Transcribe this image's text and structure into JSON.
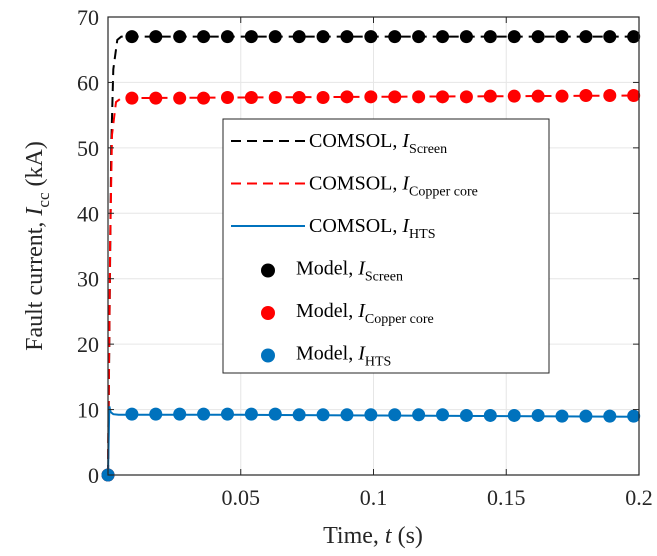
{
  "chart_data": {
    "type": "line",
    "xlabel": {
      "prefix": "Time, ",
      "var": "t",
      "suffix": " (s)"
    },
    "ylabel": {
      "prefix": "Fault current, ",
      "var": "I",
      "sub": "cc",
      "suffix": "  (kA)"
    },
    "xlim": [
      0,
      0.2
    ],
    "ylim": [
      0,
      70
    ],
    "x_ticks": [
      0.05,
      0.1,
      0.15,
      0.2
    ],
    "x_tick_labels": [
      "0.05",
      "0.1",
      "0.15",
      "0.2"
    ],
    "y_ticks": [
      0,
      10,
      20,
      30,
      40,
      50,
      60,
      70
    ],
    "y_tick_labels": [
      "0",
      "10",
      "20",
      "30",
      "40",
      "50",
      "60",
      "70"
    ],
    "grid": true,
    "legend_position": "center",
    "series": [
      {
        "name": "COMSOL, I_Screen",
        "legend": {
          "prefix": "COMSOL, ",
          "var": "I",
          "sub": "Screen"
        },
        "style": "dashed",
        "color": "#000000",
        "x": [
          0,
          0.0012,
          0.002,
          0.0035,
          0.005,
          0.02,
          0.05,
          0.1,
          0.15,
          0.2
        ],
        "y": [
          0,
          50,
          62,
          66.5,
          67,
          67,
          67,
          67,
          67,
          67
        ]
      },
      {
        "name": "COMSOL, I_Copper core",
        "legend": {
          "prefix": "COMSOL, ",
          "var": "I",
          "sub": "Copper core"
        },
        "style": "dashed",
        "color": "#ff0000",
        "x": [
          0,
          0.0008,
          0.0015,
          0.003,
          0.005,
          0.05,
          0.1,
          0.15,
          0.2
        ],
        "y": [
          0,
          35,
          52,
          57,
          57.6,
          57.7,
          57.8,
          57.9,
          58
        ]
      },
      {
        "name": "COMSOL, I_HTS",
        "legend": {
          "prefix": "COMSOL, ",
          "var": "I",
          "sub": "HTS"
        },
        "style": "solid",
        "color": "#0072bd",
        "x": [
          0,
          0.0005,
          0.001,
          0.002,
          0.004,
          0.05,
          0.1,
          0.15,
          0.2
        ],
        "y": [
          0,
          10.5,
          9.6,
          9.3,
          9.2,
          9.2,
          9.1,
          9.0,
          8.9
        ]
      },
      {
        "name": "Model, I_Screen",
        "legend": {
          "prefix": "Model, ",
          "var": "I",
          "sub": "Screen"
        },
        "style": "markers",
        "color": "#000000",
        "x": [
          0,
          0.009,
          0.018,
          0.027,
          0.036,
          0.045,
          0.054,
          0.063,
          0.072,
          0.081,
          0.09,
          0.099,
          0.108,
          0.117,
          0.126,
          0.135,
          0.144,
          0.153,
          0.162,
          0.171,
          0.18,
          0.189,
          0.198
        ],
        "y": [
          0,
          67,
          67,
          67,
          67,
          67,
          67,
          67,
          67,
          67,
          67,
          67,
          67,
          67,
          67,
          67,
          67,
          67,
          67,
          67,
          67,
          67,
          67
        ]
      },
      {
        "name": "Model, I_Copper core",
        "legend": {
          "prefix": "Model,  ",
          "var": "I",
          "sub": "Copper core"
        },
        "style": "markers",
        "color": "#ff0000",
        "x": [
          0,
          0.009,
          0.018,
          0.027,
          0.036,
          0.045,
          0.054,
          0.063,
          0.072,
          0.081,
          0.09,
          0.099,
          0.108,
          0.117,
          0.126,
          0.135,
          0.144,
          0.153,
          0.162,
          0.171,
          0.18,
          0.189,
          0.198
        ],
        "y": [
          0,
          57.6,
          57.6,
          57.6,
          57.6,
          57.7,
          57.7,
          57.7,
          57.7,
          57.7,
          57.8,
          57.8,
          57.8,
          57.8,
          57.8,
          57.8,
          57.9,
          57.9,
          57.9,
          57.9,
          58,
          58,
          58
        ]
      },
      {
        "name": "Model, I_HTS",
        "legend": {
          "prefix": "Model, ",
          "var": "I",
          "sub": "HTS"
        },
        "style": "markers",
        "color": "#0072bd",
        "x": [
          0,
          0.009,
          0.018,
          0.027,
          0.036,
          0.045,
          0.054,
          0.063,
          0.072,
          0.081,
          0.09,
          0.099,
          0.108,
          0.117,
          0.126,
          0.135,
          0.144,
          0.153,
          0.162,
          0.171,
          0.18,
          0.189,
          0.198
        ],
        "y": [
          0,
          9.3,
          9.3,
          9.3,
          9.3,
          9.3,
          9.3,
          9.3,
          9.2,
          9.2,
          9.2,
          9.2,
          9.2,
          9.2,
          9.2,
          9.1,
          9.1,
          9.1,
          9.1,
          9.0,
          9.0,
          9.0,
          9.0
        ]
      }
    ]
  }
}
